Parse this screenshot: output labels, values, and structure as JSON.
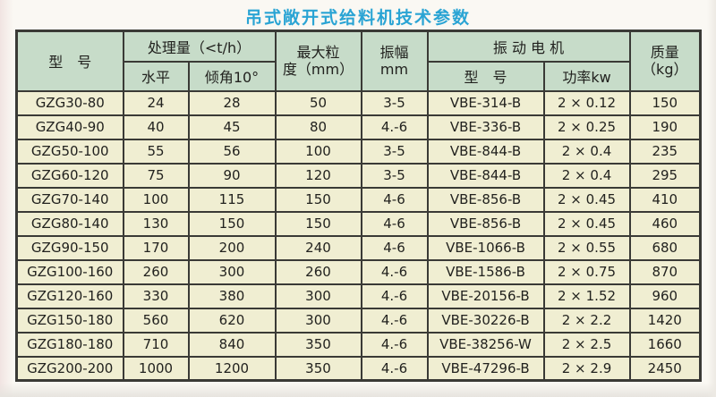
{
  "title": "吊式敞开式给料机技术参数",
  "colors": {
    "title": "#2aa4d4",
    "header_bg": "#c7dcc9",
    "row_bg": "#f0eed2",
    "border": "#3a3a36"
  },
  "table": {
    "headers": {
      "model": "型　号",
      "capacity": "处理量（<t/h）",
      "horizontal": "水平",
      "incline": "倾角10°",
      "max_size_line1": "最大粒",
      "max_size_line2": "度（mm）",
      "amplitude_line1": "振幅",
      "amplitude_line2": "mm",
      "motor": "振 动 电 机",
      "motor_model": "型　号",
      "motor_power": "功率kw",
      "mass_line1": "质量",
      "mass_line2": "（kg）"
    },
    "rows": [
      {
        "model": "GZG30-80",
        "horizontal": "24",
        "incline": "28",
        "max_size": "50",
        "amplitude": "3-5",
        "motor_model": "VBE-314-B",
        "power": "2 × 0.12",
        "mass": "150"
      },
      {
        "model": "GZG40-90",
        "horizontal": "40",
        "incline": "45",
        "max_size": "80",
        "amplitude": "4.-6",
        "motor_model": "VBE-336-B",
        "power": "2 × 0.25",
        "mass": "190"
      },
      {
        "model": "GZG50-100",
        "horizontal": "55",
        "incline": "56",
        "max_size": "100",
        "amplitude": "3-5",
        "motor_model": "VBE-844-B",
        "power": "2 × 0.4",
        "mass": "235"
      },
      {
        "model": "GZG60-120",
        "horizontal": "75",
        "incline": "90",
        "max_size": "120",
        "amplitude": "3-5",
        "motor_model": "VBE-844-B",
        "power": "2 × 0.4",
        "mass": "295"
      },
      {
        "model": "GZG70-140",
        "horizontal": "100",
        "incline": "115",
        "max_size": "150",
        "amplitude": "4-6",
        "motor_model": "VBE-856-B",
        "power": "2 × 0.45",
        "mass": "410"
      },
      {
        "model": "GZG80-140",
        "horizontal": "130",
        "incline": "150",
        "max_size": "150",
        "amplitude": "4-6",
        "motor_model": "VBE-856-B",
        "power": "2 × 0.45",
        "mass": "460"
      },
      {
        "model": "GZG90-150",
        "horizontal": "170",
        "incline": "200",
        "max_size": "240",
        "amplitude": "4-6",
        "motor_model": "VBE-1066-B",
        "power": "2 × 0.55",
        "mass": "680"
      },
      {
        "model": "GZG100-160",
        "horizontal": "260",
        "incline": "300",
        "max_size": "260",
        "amplitude": "4.-6",
        "motor_model": "VBE-1586-B",
        "power": "2 × 0.75",
        "mass": "870"
      },
      {
        "model": "GZG120-160",
        "horizontal": "330",
        "incline": "380",
        "max_size": "300",
        "amplitude": "4.-6",
        "motor_model": "VBE-20156-B",
        "power": "2 × 1.52",
        "mass": "960"
      },
      {
        "model": "GZG150-180",
        "horizontal": "560",
        "incline": "620",
        "max_size": "300",
        "amplitude": "4.-6",
        "motor_model": "VBE-30226-B",
        "power": "2 × 2.2",
        "mass": "1420"
      },
      {
        "model": "GZG180-180",
        "horizontal": "710",
        "incline": "840",
        "max_size": "350",
        "amplitude": "4.-6",
        "motor_model": "VBE-38256-W",
        "power": "2 × 2.5",
        "mass": "1660"
      },
      {
        "model": "GZG200-200",
        "horizontal": "1000",
        "incline": "1200",
        "max_size": "350",
        "amplitude": "4.-6",
        "motor_model": "VBE-47296-B",
        "power": "2 × 2.9",
        "mass": "2450"
      }
    ]
  }
}
